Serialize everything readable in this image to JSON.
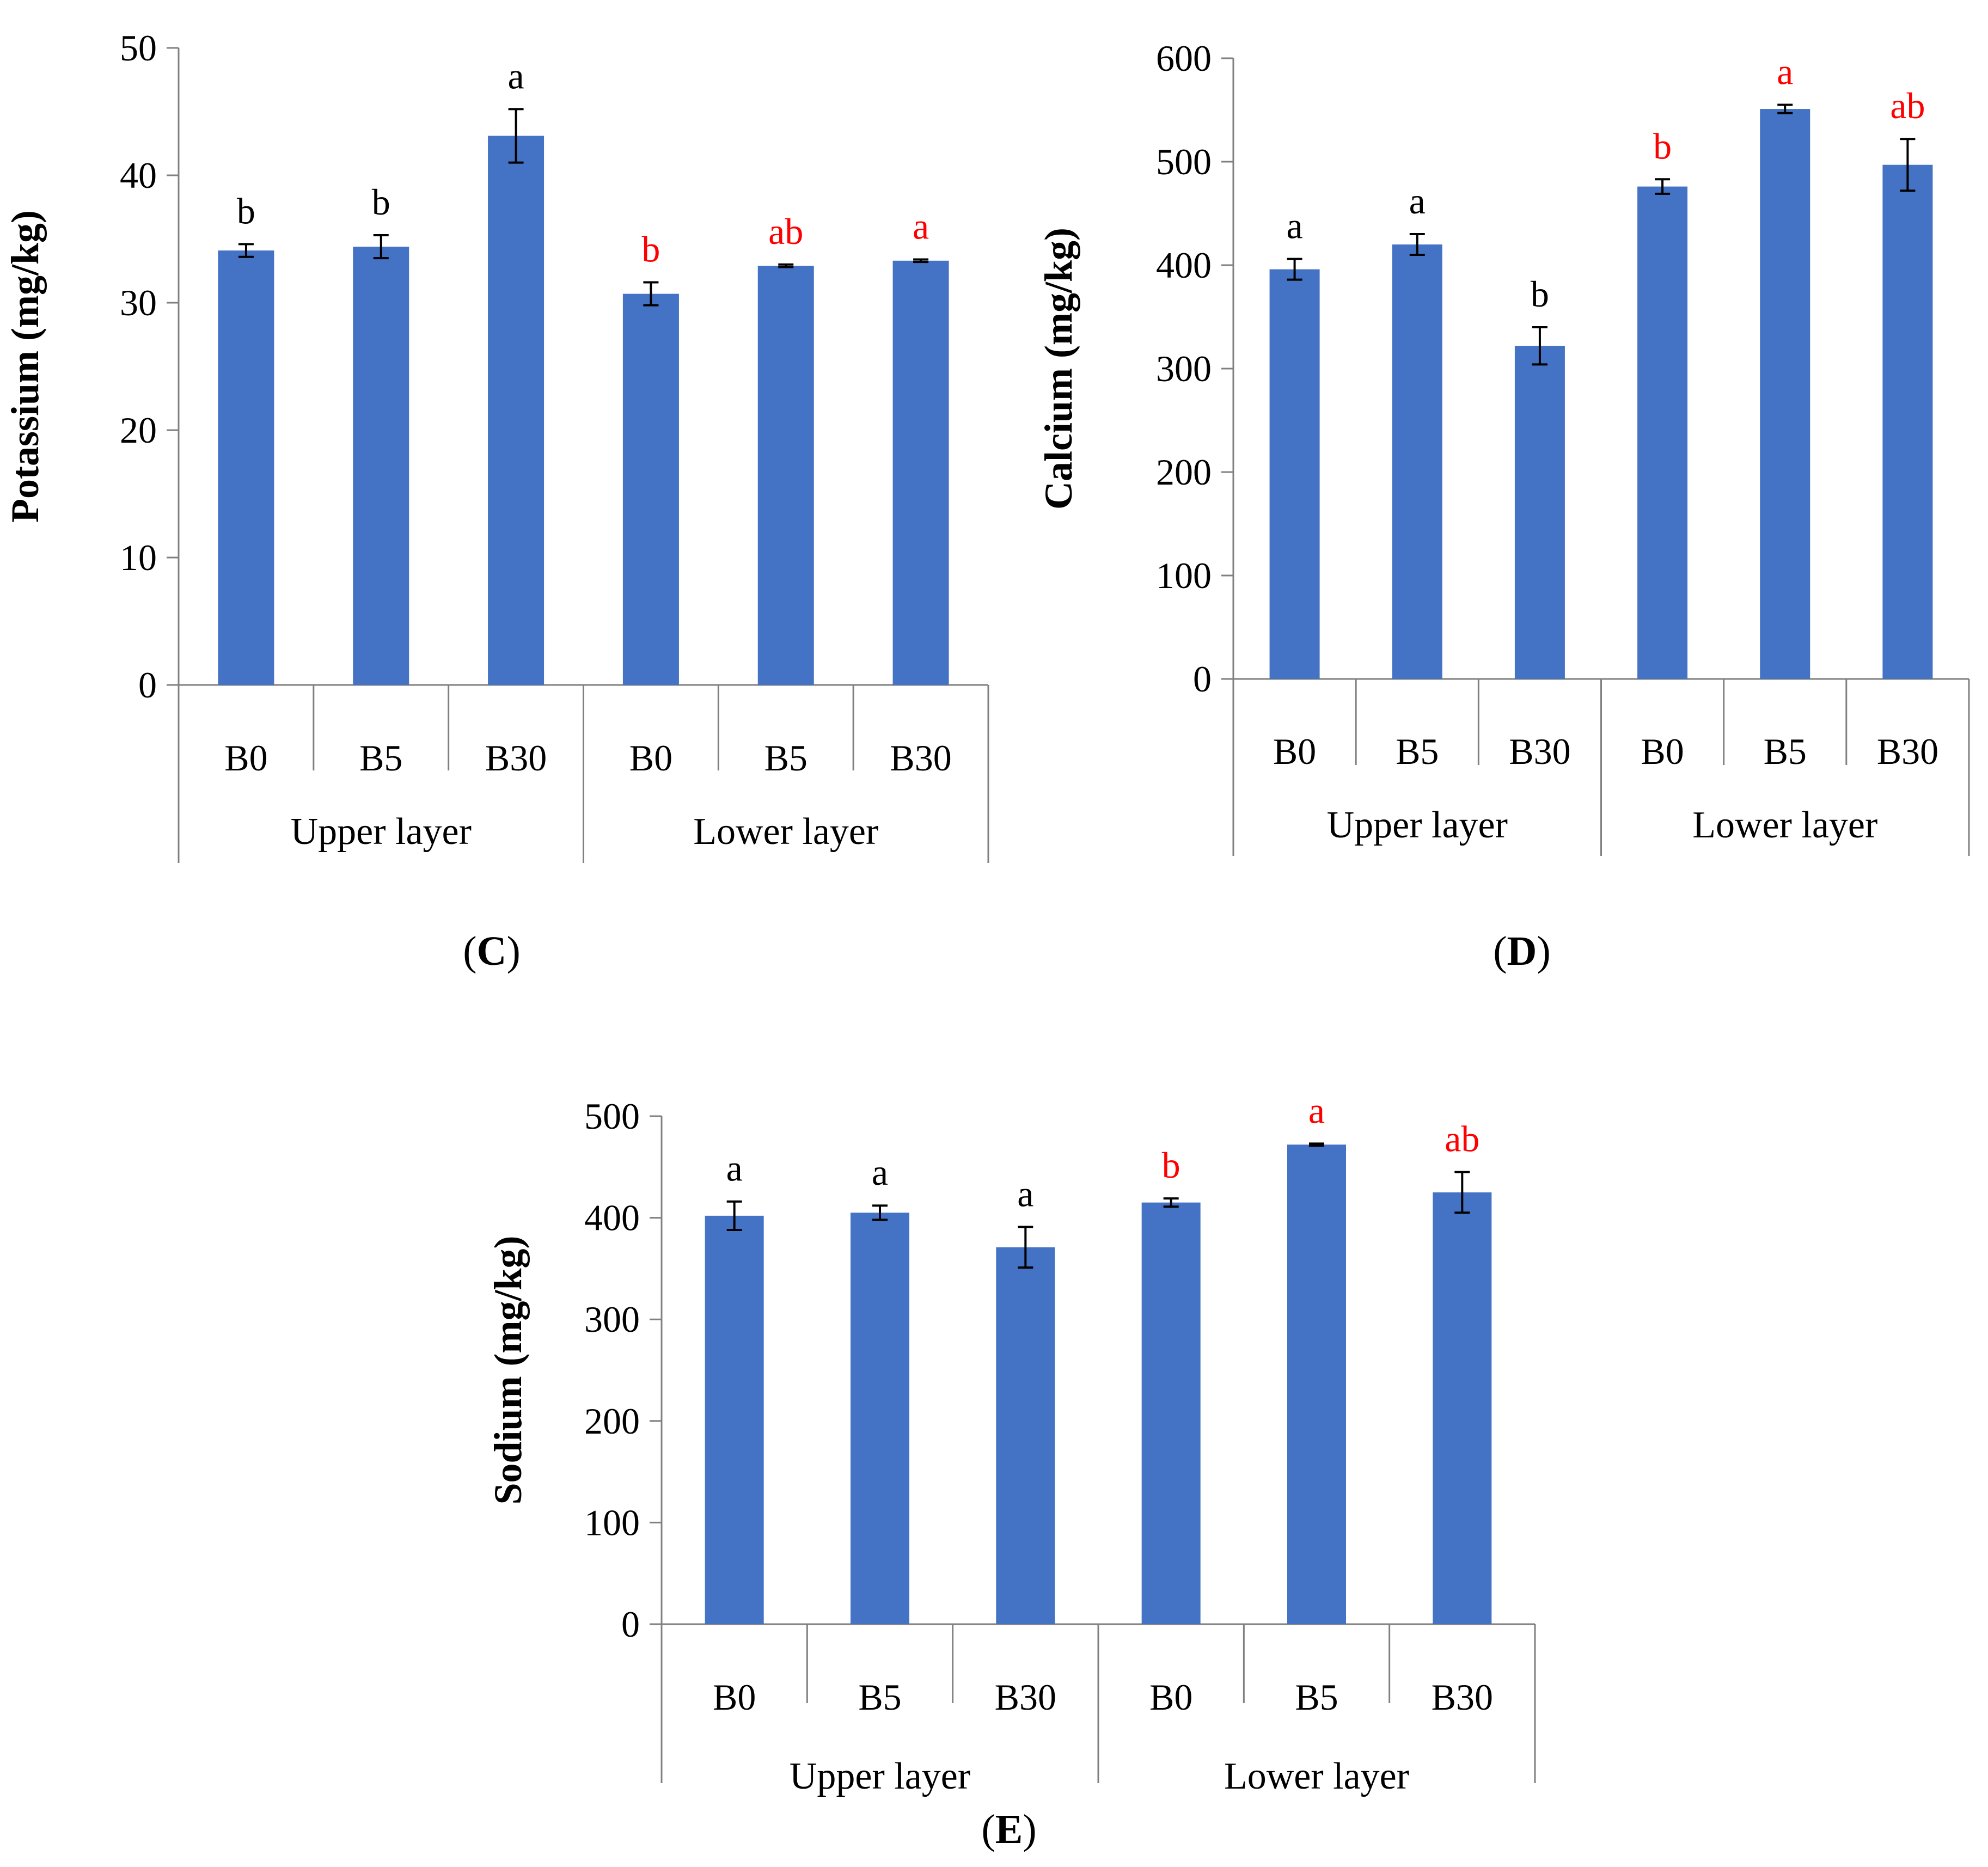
{
  "chart_data": [
    {
      "type": "bar",
      "panel": "C",
      "ylabel": "Potassium (mg/kg)",
      "ylim": [
        0,
        50
      ],
      "yticks": [
        0,
        10,
        20,
        30,
        40,
        50
      ],
      "categories": [
        "B0",
        "B5",
        "B30",
        "B0",
        "B5",
        "B30"
      ],
      "groups": [
        {
          "label": "Upper layer",
          "count": 3
        },
        {
          "label": "Lower layer",
          "count": 3
        }
      ],
      "values": [
        34.1,
        34.4,
        43.1,
        30.7,
        32.9,
        33.3
      ],
      "errors": [
        0.5,
        0.9,
        2.1,
        0.9,
        0.1,
        0.1
      ],
      "letters": [
        "b",
        "b",
        "a",
        "b",
        "ab",
        "a"
      ],
      "letter_colors": [
        "#000000",
        "#000000",
        "#000000",
        "#ff0000",
        "#ff0000",
        "#ff0000"
      ],
      "bar_color": "#4472c4"
    },
    {
      "type": "bar",
      "panel": "D",
      "ylabel": "Calcium (mg/kg)",
      "ylim": [
        0,
        600
      ],
      "yticks": [
        0,
        100,
        200,
        300,
        400,
        500,
        600
      ],
      "categories": [
        "B0",
        "B5",
        "B30",
        "B0",
        "B5",
        "B30"
      ],
      "groups": [
        {
          "label": "Upper layer",
          "count": 3
        },
        {
          "label": "Lower layer",
          "count": 3
        }
      ],
      "values": [
        396,
        420,
        322,
        476,
        551,
        497
      ],
      "errors": [
        10,
        10,
        18,
        7,
        4,
        25
      ],
      "letters": [
        "a",
        "a",
        "b",
        "b",
        "a",
        "ab"
      ],
      "letter_colors": [
        "#000000",
        "#000000",
        "#000000",
        "#ff0000",
        "#ff0000",
        "#ff0000"
      ],
      "bar_color": "#4472c4"
    },
    {
      "type": "bar",
      "panel": "E",
      "ylabel": "Sodium (mg/kg)",
      "ylim": [
        0,
        500
      ],
      "yticks": [
        0,
        100,
        200,
        300,
        400,
        500
      ],
      "categories": [
        "B0",
        "B5",
        "B30",
        "B0",
        "B5",
        "B30"
      ],
      "groups": [
        {
          "label": "Upper layer",
          "count": 3
        },
        {
          "label": "Lower layer",
          "count": 3
        }
      ],
      "values": [
        402,
        405,
        371,
        415,
        472,
        425
      ],
      "errors": [
        14,
        7,
        20,
        4,
        1,
        20
      ],
      "letters": [
        "a",
        "a",
        "a",
        "b",
        "a",
        "ab"
      ],
      "letter_colors": [
        "#000000",
        "#000000",
        "#000000",
        "#ff0000",
        "#ff0000",
        "#ff0000"
      ],
      "bar_color": "#4472c4"
    }
  ],
  "panel_labels": [
    {
      "open": "(",
      "letter": "C",
      "close": ")"
    },
    {
      "open": "(",
      "letter": "D",
      "close": ")"
    },
    {
      "open": "(",
      "letter": "E",
      "close": ")"
    }
  ]
}
